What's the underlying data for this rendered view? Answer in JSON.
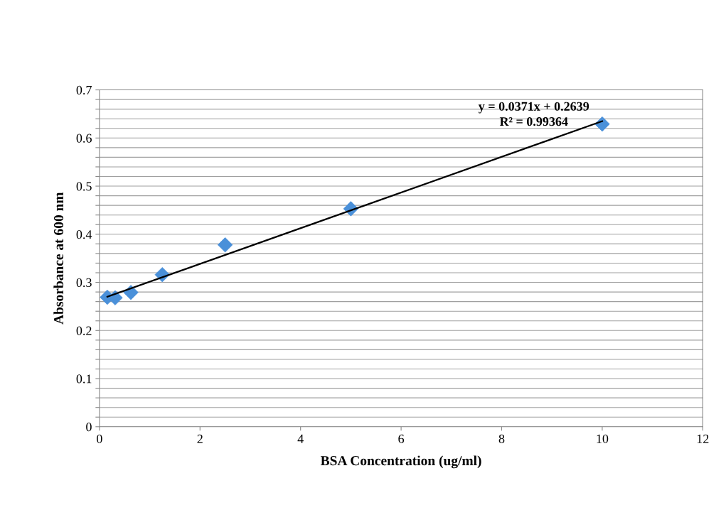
{
  "chart_data": {
    "type": "scatter",
    "xlabel": "BSA Concentration (ug/ml)",
    "ylabel": "Absorbance at 600 nm",
    "xlim": [
      0,
      12
    ],
    "xticks": [
      0,
      2,
      4,
      6,
      8,
      10,
      12
    ],
    "ylim": [
      0,
      0.7
    ],
    "yticks": [
      0,
      {
        "value": 0.02,
        "label": null
      },
      {
        "value": 0.04,
        "label": null
      },
      {
        "value": 0.06,
        "label": null
      },
      {
        "value": 0.08,
        "label": null
      },
      0.1,
      {
        "value": 0.12,
        "label": null
      },
      {
        "value": 0.14,
        "label": null
      },
      {
        "value": 0.16,
        "label": null
      },
      {
        "value": 0.18,
        "label": null
      },
      0.2,
      {
        "value": 0.22,
        "label": null
      },
      {
        "value": 0.24,
        "label": null
      },
      {
        "value": 0.26,
        "label": null
      },
      {
        "value": 0.28,
        "label": null
      },
      0.3,
      {
        "value": 0.32,
        "label": null
      },
      {
        "value": 0.34,
        "label": null
      },
      {
        "value": 0.36,
        "label": null
      },
      {
        "value": 0.38,
        "label": null
      },
      0.4,
      {
        "value": 0.42,
        "label": null
      },
      {
        "value": 0.44,
        "label": null
      },
      {
        "value": 0.46,
        "label": null
      },
      {
        "value": 0.48,
        "label": null
      },
      0.5,
      {
        "value": 0.52,
        "label": null
      },
      {
        "value": 0.54,
        "label": null
      },
      {
        "value": 0.56,
        "label": null
      },
      {
        "value": 0.58,
        "label": null
      },
      0.6,
      {
        "value": 0.62,
        "label": null
      },
      {
        "value": 0.64,
        "label": null
      },
      {
        "value": 0.66,
        "label": null
      },
      {
        "value": 0.68,
        "label": null
      },
      0.7
    ],
    "grid": "y",
    "legend": false,
    "series": [
      {
        "color": "#4a90d9",
        "marker": "diamond",
        "x": [
          0.156,
          0.3125,
          0.625,
          1.25,
          2.5,
          5,
          10
        ],
        "values": [
          0.269,
          0.268,
          0.279,
          0.316,
          0.378,
          0.453,
          0.629
        ]
      },
      {
        "type": "line",
        "marker": "none",
        "color": "#000000",
        "x": [
          0.156,
          10
        ],
        "values": [
          0.27,
          0.635
        ]
      }
    ],
    "annotations": [
      "y = 0.0371x + 0.2639",
      "R² = 0.99364"
    ]
  }
}
